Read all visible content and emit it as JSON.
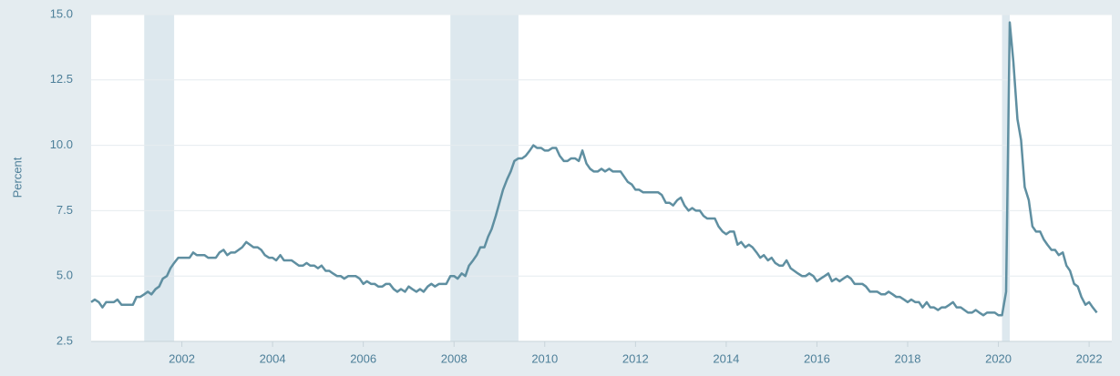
{
  "chart_data": {
    "type": "line",
    "y_label": "Percent",
    "color": "#5f8fa1",
    "grid": true,
    "xlim": [
      2000,
      2022.5
    ],
    "xticks": [
      2002,
      2004,
      2006,
      2008,
      2010,
      2012,
      2014,
      2016,
      2018,
      2020,
      2022
    ],
    "ylim": [
      2.5,
      15
    ],
    "yticks": [
      {
        "value": 2.5,
        "label": "2.5"
      },
      {
        "value": 5,
        "label": "5.0"
      },
      {
        "value": 7.5,
        "label": "7.5"
      },
      {
        "value": 10,
        "label": "10.0"
      },
      {
        "value": 12.5,
        "label": "12.5"
      },
      {
        "value": 15,
        "label": "15.0"
      }
    ],
    "recessions": [
      [
        2001.17,
        2001.83
      ],
      [
        2007.92,
        2009.42
      ],
      [
        2020.08,
        2020.25
      ]
    ],
    "x": [
      2000.0,
      2000.08,
      2000.17,
      2000.25,
      2000.33,
      2000.42,
      2000.5,
      2000.58,
      2000.67,
      2000.75,
      2000.83,
      2000.92,
      2001.0,
      2001.08,
      2001.17,
      2001.25,
      2001.33,
      2001.42,
      2001.5,
      2001.58,
      2001.67,
      2001.75,
      2001.83,
      2001.92,
      2002.0,
      2002.08,
      2002.17,
      2002.25,
      2002.33,
      2002.42,
      2002.5,
      2002.58,
      2002.67,
      2002.75,
      2002.83,
      2002.92,
      2003.0,
      2003.08,
      2003.17,
      2003.25,
      2003.33,
      2003.42,
      2003.5,
      2003.58,
      2003.67,
      2003.75,
      2003.83,
      2003.92,
      2004.0,
      2004.08,
      2004.17,
      2004.25,
      2004.33,
      2004.42,
      2004.5,
      2004.58,
      2004.67,
      2004.75,
      2004.83,
      2004.92,
      2005.0,
      2005.08,
      2005.17,
      2005.25,
      2005.33,
      2005.42,
      2005.5,
      2005.58,
      2005.67,
      2005.75,
      2005.83,
      2005.92,
      2006.0,
      2006.08,
      2006.17,
      2006.25,
      2006.33,
      2006.42,
      2006.5,
      2006.58,
      2006.67,
      2006.75,
      2006.83,
      2006.92,
      2007.0,
      2007.08,
      2007.17,
      2007.25,
      2007.33,
      2007.42,
      2007.5,
      2007.58,
      2007.67,
      2007.75,
      2007.83,
      2007.92,
      2008.0,
      2008.08,
      2008.17,
      2008.25,
      2008.33,
      2008.42,
      2008.5,
      2008.58,
      2008.67,
      2008.75,
      2008.83,
      2008.92,
      2009.0,
      2009.08,
      2009.17,
      2009.25,
      2009.33,
      2009.42,
      2009.5,
      2009.58,
      2009.67,
      2009.75,
      2009.83,
      2009.92,
      2010.0,
      2010.08,
      2010.17,
      2010.25,
      2010.33,
      2010.42,
      2010.5,
      2010.58,
      2010.67,
      2010.75,
      2010.83,
      2010.92,
      2011.0,
      2011.08,
      2011.17,
      2011.25,
      2011.33,
      2011.42,
      2011.5,
      2011.58,
      2011.67,
      2011.75,
      2011.83,
      2011.92,
      2012.0,
      2012.08,
      2012.17,
      2012.25,
      2012.33,
      2012.42,
      2012.5,
      2012.58,
      2012.67,
      2012.75,
      2012.83,
      2012.92,
      2013.0,
      2013.08,
      2013.17,
      2013.25,
      2013.33,
      2013.42,
      2013.5,
      2013.58,
      2013.67,
      2013.75,
      2013.83,
      2013.92,
      2014.0,
      2014.08,
      2014.17,
      2014.25,
      2014.33,
      2014.42,
      2014.5,
      2014.58,
      2014.67,
      2014.75,
      2014.83,
      2014.92,
      2015.0,
      2015.08,
      2015.17,
      2015.25,
      2015.33,
      2015.42,
      2015.5,
      2015.58,
      2015.67,
      2015.75,
      2015.83,
      2015.92,
      2016.0,
      2016.08,
      2016.17,
      2016.25,
      2016.33,
      2016.42,
      2016.5,
      2016.58,
      2016.67,
      2016.75,
      2016.83,
      2016.92,
      2017.0,
      2017.08,
      2017.17,
      2017.25,
      2017.33,
      2017.42,
      2017.5,
      2017.58,
      2017.67,
      2017.75,
      2017.83,
      2017.92,
      2018.0,
      2018.08,
      2018.17,
      2018.25,
      2018.33,
      2018.42,
      2018.5,
      2018.58,
      2018.67,
      2018.75,
      2018.83,
      2018.92,
      2019.0,
      2019.08,
      2019.17,
      2019.25,
      2019.33,
      2019.42,
      2019.5,
      2019.58,
      2019.67,
      2019.75,
      2019.83,
      2019.92,
      2020.0,
      2020.08,
      2020.17,
      2020.25,
      2020.33,
      2020.42,
      2020.5,
      2020.58,
      2020.67,
      2020.75,
      2020.83,
      2020.92,
      2021.0,
      2021.08,
      2021.17,
      2021.25,
      2021.33,
      2021.42,
      2021.5,
      2021.58,
      2021.67,
      2021.75,
      2021.83,
      2021.92,
      2022.0,
      2022.08,
      2022.17
    ],
    "values": [
      4.0,
      4.1,
      4.0,
      3.8,
      4.0,
      4.0,
      4.0,
      4.1,
      3.9,
      3.9,
      3.9,
      3.9,
      4.2,
      4.2,
      4.3,
      4.4,
      4.3,
      4.5,
      4.6,
      4.9,
      5.0,
      5.3,
      5.5,
      5.7,
      5.7,
      5.7,
      5.7,
      5.9,
      5.8,
      5.8,
      5.8,
      5.7,
      5.7,
      5.7,
      5.9,
      6.0,
      5.8,
      5.9,
      5.9,
      6.0,
      6.1,
      6.3,
      6.2,
      6.1,
      6.1,
      6.0,
      5.8,
      5.7,
      5.7,
      5.6,
      5.8,
      5.6,
      5.6,
      5.6,
      5.5,
      5.4,
      5.4,
      5.5,
      5.4,
      5.4,
      5.3,
      5.4,
      5.2,
      5.2,
      5.1,
      5.0,
      5.0,
      4.9,
      5.0,
      5.0,
      5.0,
      4.9,
      4.7,
      4.8,
      4.7,
      4.7,
      4.6,
      4.6,
      4.7,
      4.7,
      4.5,
      4.4,
      4.5,
      4.4,
      4.6,
      4.5,
      4.4,
      4.5,
      4.4,
      4.6,
      4.7,
      4.6,
      4.7,
      4.7,
      4.7,
      5.0,
      5.0,
      4.9,
      5.1,
      5.0,
      5.4,
      5.6,
      5.8,
      6.1,
      6.1,
      6.5,
      6.8,
      7.3,
      7.8,
      8.3,
      8.7,
      9.0,
      9.4,
      9.5,
      9.5,
      9.6,
      9.8,
      10.0,
      9.9,
      9.9,
      9.8,
      9.8,
      9.9,
      9.9,
      9.6,
      9.4,
      9.4,
      9.5,
      9.5,
      9.4,
      9.8,
      9.3,
      9.1,
      9.0,
      9.0,
      9.1,
      9.0,
      9.1,
      9.0,
      9.0,
      9.0,
      8.8,
      8.6,
      8.5,
      8.3,
      8.3,
      8.2,
      8.2,
      8.2,
      8.2,
      8.2,
      8.1,
      7.8,
      7.8,
      7.7,
      7.9,
      8.0,
      7.7,
      7.5,
      7.6,
      7.5,
      7.5,
      7.3,
      7.2,
      7.2,
      7.2,
      6.9,
      6.7,
      6.6,
      6.7,
      6.7,
      6.2,
      6.3,
      6.1,
      6.2,
      6.1,
      5.9,
      5.7,
      5.8,
      5.6,
      5.7,
      5.5,
      5.4,
      5.4,
      5.6,
      5.3,
      5.2,
      5.1,
      5.0,
      5.0,
      5.1,
      5.0,
      4.8,
      4.9,
      5.0,
      5.1,
      4.8,
      4.9,
      4.8,
      4.9,
      5.0,
      4.9,
      4.7,
      4.7,
      4.7,
      4.6,
      4.4,
      4.4,
      4.4,
      4.3,
      4.3,
      4.4,
      4.3,
      4.2,
      4.2,
      4.1,
      4.0,
      4.1,
      4.0,
      4.0,
      3.8,
      4.0,
      3.8,
      3.8,
      3.7,
      3.8,
      3.8,
      3.9,
      4.0,
      3.8,
      3.8,
      3.7,
      3.6,
      3.6,
      3.7,
      3.6,
      3.5,
      3.6,
      3.6,
      3.6,
      3.5,
      3.5,
      4.4,
      14.7,
      13.2,
      11.0,
      10.2,
      8.4,
      7.9,
      6.9,
      6.7,
      6.7,
      6.4,
      6.2,
      6.0,
      6.0,
      5.8,
      5.9,
      5.4,
      5.2,
      4.7,
      4.6,
      4.2,
      3.9,
      4.0,
      3.8,
      3.6
    ]
  }
}
